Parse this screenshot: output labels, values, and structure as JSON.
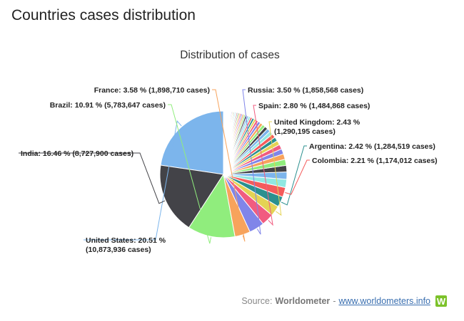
{
  "page": {
    "heading": "Countries cases distribution"
  },
  "source": {
    "prefix": "Source:",
    "name": "Worldometer",
    "separator": "-",
    "link_text": "www.worldometers.info",
    "logo_letter": "W",
    "logo_color": "#7cc22a"
  },
  "chart_data": {
    "type": "pie",
    "title": "Distribution of cases",
    "start_angle_deg": 90,
    "direction": "counterclockwise",
    "slices": [
      {
        "name": "United States",
        "label": "United States: 20.51 %",
        "label2": "(10,873,936 cases)",
        "value": 20.51,
        "color": "#7cb5ec"
      },
      {
        "name": "India",
        "label": "India: 16.46 % (8,727,900 cases)",
        "value": 16.46,
        "color": "#434348"
      },
      {
        "name": "Brazil",
        "label": "Brazil: 10.91 % (5,783,647 cases)",
        "value": 10.91,
        "color": "#90ed7d"
      },
      {
        "name": "France",
        "label": "France: 3.58 % (1,898,710 cases)",
        "value": 3.58,
        "color": "#f7a35c"
      },
      {
        "name": "Russia",
        "label": "Russia: 3.50 % (1,858,568 cases)",
        "value": 3.5,
        "color": "#8085e9"
      },
      {
        "name": "Spain",
        "label": "Spain: 2.80 % (1,484,868 cases)",
        "value": 2.8,
        "color": "#f15c80"
      },
      {
        "name": "United Kingdom",
        "label": "United Kingdom: 2.43 %",
        "label2": "(1,290,195 cases)",
        "value": 2.43,
        "color": "#e4d354"
      },
      {
        "name": "Argentina",
        "label": "Argentina: 2.42 % (1,284,519 cases)",
        "value": 2.42,
        "color": "#2b908f"
      },
      {
        "name": "Colombia",
        "label": "Colombia: 2.21 % (1,174,012 cases)",
        "value": 2.21,
        "color": "#f45b5b"
      },
      {
        "name": "",
        "value": 1.9,
        "color": "#91e8e1"
      },
      {
        "name": "",
        "value": 1.7,
        "color": "#7cb5ec"
      },
      {
        "name": "",
        "value": 1.5,
        "color": "#434348"
      },
      {
        "name": "",
        "value": 1.4,
        "color": "#90ed7d"
      },
      {
        "name": "",
        "value": 1.3,
        "color": "#f7a35c"
      },
      {
        "name": "",
        "value": 1.2,
        "color": "#8085e9"
      },
      {
        "name": "",
        "value": 1.1,
        "color": "#f15c80"
      },
      {
        "name": "",
        "value": 1.0,
        "color": "#e4d354"
      },
      {
        "name": "",
        "value": 0.95,
        "color": "#2b908f"
      },
      {
        "name": "",
        "value": 0.9,
        "color": "#f45b5b"
      },
      {
        "name": "",
        "value": 0.85,
        "color": "#91e8e1"
      },
      {
        "name": "",
        "value": 0.8,
        "color": "#7cb5ec"
      },
      {
        "name": "",
        "value": 0.75,
        "color": "#434348"
      },
      {
        "name": "",
        "value": 0.7,
        "color": "#90ed7d"
      },
      {
        "name": "",
        "value": 0.65,
        "color": "#f7a35c"
      },
      {
        "name": "",
        "value": 0.6,
        "color": "#8085e9"
      },
      {
        "name": "",
        "value": 0.55,
        "color": "#f15c80"
      },
      {
        "name": "",
        "value": 0.5,
        "color": "#e4d354"
      },
      {
        "name": "",
        "value": 0.5,
        "color": "#2b908f"
      },
      {
        "name": "",
        "value": 0.45,
        "color": "#f45b5b"
      },
      {
        "name": "",
        "value": 0.45,
        "color": "#91e8e1"
      },
      {
        "name": "",
        "value": 0.4,
        "color": "#7cb5ec"
      },
      {
        "name": "",
        "value": 0.4,
        "color": "#434348"
      },
      {
        "name": "",
        "value": 0.35,
        "color": "#90ed7d"
      },
      {
        "name": "",
        "value": 0.35,
        "color": "#f7a35c"
      },
      {
        "name": "",
        "value": 0.3,
        "color": "#8085e9"
      },
      {
        "name": "",
        "value": 0.3,
        "color": "#f15c80"
      },
      {
        "name": "",
        "value": 0.3,
        "color": "#e4d354"
      },
      {
        "name": "",
        "value": 0.25,
        "color": "#2b908f"
      },
      {
        "name": "",
        "value": 0.25,
        "color": "#f45b5b"
      },
      {
        "name": "",
        "value": 0.25,
        "color": "#91e8e1"
      },
      {
        "name": "",
        "value": 0.2,
        "color": "#7cb5ec"
      },
      {
        "name": "",
        "value": 0.2,
        "color": "#434348"
      },
      {
        "name": "",
        "value": 0.2,
        "color": "#90ed7d"
      },
      {
        "name": "",
        "value": 0.2,
        "color": "#f7a35c"
      },
      {
        "name": "",
        "value": 0.2,
        "color": "#8085e9"
      },
      {
        "name": "",
        "value": 0.15,
        "color": "#f15c80"
      },
      {
        "name": "",
        "value": 0.15,
        "color": "#e4d354"
      },
      {
        "name": "",
        "value": 0.15,
        "color": "#2b908f"
      },
      {
        "name": "",
        "value": 0.15,
        "color": "#f45b5b"
      },
      {
        "name": "",
        "value": 0.15,
        "color": "#91e8e1"
      },
      {
        "name": "",
        "value": 0.1,
        "color": "#7cb5ec"
      },
      {
        "name": "",
        "value": 0.1,
        "color": "#434348"
      },
      {
        "name": "",
        "value": 0.1,
        "color": "#90ed7d"
      },
      {
        "name": "",
        "value": 0.1,
        "color": "#f7a35c"
      },
      {
        "name": "",
        "value": 0.1,
        "color": "#8085e9"
      },
      {
        "name": "",
        "value": 0.1,
        "color": "#f15c80"
      },
      {
        "name": "",
        "value": 0.1,
        "color": "#e4d354"
      },
      {
        "name": "",
        "value": 0.1,
        "color": "#2b908f"
      },
      {
        "name": "",
        "value": 0.1,
        "color": "#f45b5b"
      },
      {
        "name": "",
        "value": 0.1,
        "color": "#91e8e1"
      }
    ]
  }
}
